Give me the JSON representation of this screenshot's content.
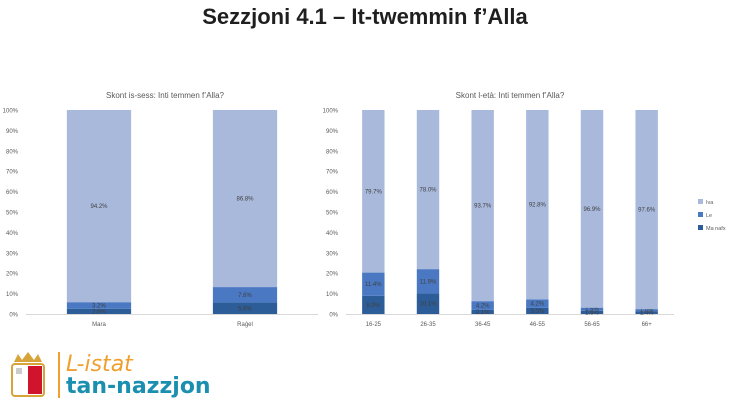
{
  "page": {
    "title": "Sezzjoni 4.1 – It-twemmin f’Alla"
  },
  "logo": {
    "line1": "L-istat",
    "line2": "tan-nazzjon"
  },
  "colors": {
    "Iva": "#a9b9dc",
    "Le": "#4a78c2",
    "Ma nafx": "#2d5d98"
  },
  "chart_data": [
    {
      "type": "bar",
      "stacked": true,
      "title": "Skont is-sess: Inti temmen f’Alla?",
      "categories": [
        "Mara",
        "Raġel"
      ],
      "series": [
        {
          "name": "Ma nafx",
          "values": [
            2.6,
            5.6
          ],
          "labels": [
            "2.6%",
            "5.6%"
          ]
        },
        {
          "name": "Le",
          "values": [
            3.2,
            7.6
          ],
          "labels": [
            "3.2%",
            "7.6%"
          ]
        },
        {
          "name": "Iva",
          "values": [
            94.2,
            86.8
          ],
          "labels": [
            "94.2%",
            "86.8%"
          ]
        }
      ],
      "ylim": [
        0,
        100
      ],
      "yticks": [
        "0%",
        "10%",
        "20%",
        "30%",
        "40%",
        "50%",
        "60%",
        "70%",
        "80%",
        "90%",
        "100%"
      ],
      "grid": false,
      "legend": "none"
    },
    {
      "type": "bar",
      "stacked": true,
      "title": "Skont l-età: Inti temmen f’Alla?",
      "categories": [
        "16-25",
        "26-35",
        "36-45",
        "46-55",
        "56-65",
        "66+"
      ],
      "series": [
        {
          "name": "Ma nafx",
          "values": [
            8.9,
            10.1,
            2.1,
            3.0,
            1.6,
            1.4
          ],
          "labels": [
            "8.9%",
            "10.1%",
            "2.1%",
            "3.0%",
            "1.6%",
            "1.4%"
          ]
        },
        {
          "name": "Le",
          "values": [
            11.4,
            11.9,
            4.2,
            4.2,
            1.5,
            1.0
          ],
          "labels": [
            "11.4%",
            "11.9%",
            "4.2%",
            "4.2%",
            "1.5%",
            "1.0%"
          ]
        },
        {
          "name": "Iva",
          "values": [
            79.7,
            78.0,
            93.7,
            92.8,
            96.9,
            97.6
          ],
          "labels": [
            "79.7%",
            "78.0%",
            "93.7%",
            "92.8%",
            "96.9%",
            "97.6%"
          ]
        }
      ],
      "ylim": [
        0,
        100
      ],
      "yticks": [
        "0%",
        "10%",
        "20%",
        "30%",
        "40%",
        "50%",
        "60%",
        "70%",
        "80%",
        "90%",
        "100%"
      ],
      "grid": false,
      "legend": "right",
      "legend_entries": [
        "Iva",
        "Le",
        "Ma nafx"
      ]
    }
  ]
}
